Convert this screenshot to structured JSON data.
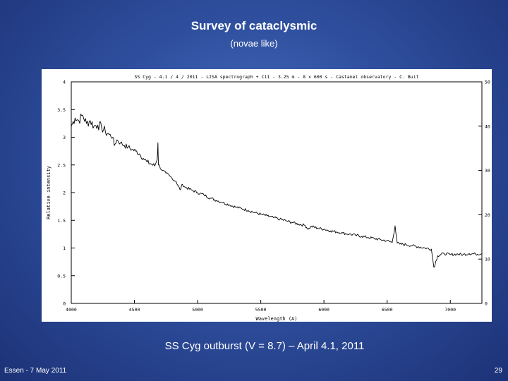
{
  "slide": {
    "title": "Survey of cataclysmic",
    "subtitle": "(novae like)",
    "caption": "SS Cyg outburst (V = 8.7) – April 4.1, 2011",
    "footer_left": "Essen - 7 May 2011",
    "page_number": "29",
    "background_color": "#2f4f9e"
  },
  "chart_data": {
    "type": "line",
    "title": "SS Cyg - 4.1 / 4 / 2011 - LISA spectrograph + C11 - 3.25 m - 8 x 600 s - Castanet observatory - C. Buil",
    "xlabel": "Wavelength (A)",
    "ylabel": "Relative intensity",
    "xlim": [
      4000,
      7250
    ],
    "ylim": [
      0,
      4
    ],
    "y2lim": [
      0,
      50
    ],
    "xticks": [
      4000,
      4500,
      5000,
      5500,
      6000,
      6500,
      7000
    ],
    "xtick_labels": [
      "4000",
      "4500",
      "5000",
      "5500",
      "6000",
      "6500",
      "7000"
    ],
    "yticks": [
      0,
      0.5,
      1,
      1.5,
      2,
      2.5,
      3,
      3.5,
      4
    ],
    "ytick_labels": [
      "0",
      "0.5",
      "1",
      "1.5",
      "2",
      "2.5",
      "3",
      "3.5",
      "4"
    ],
    "y2ticks": [
      0,
      10,
      20,
      30,
      40,
      50
    ],
    "y2tick_labels": [
      "0",
      "10",
      "20",
      "30",
      "40",
      "50"
    ],
    "grid": false,
    "line_color": "#000000",
    "series": [
      {
        "x": [
          4000,
          4030,
          4060,
          4090,
          4120,
          4150,
          4180,
          4210,
          4240,
          4270,
          4300,
          4330,
          4340,
          4360,
          4390,
          4420,
          4450,
          4480,
          4510,
          4540,
          4570,
          4600,
          4630,
          4660,
          4680,
          4686,
          4690,
          4720,
          4750,
          4780,
          4800,
          4830,
          4861,
          4880,
          4900,
          4950,
          5000,
          5050,
          5100,
          5150,
          5200,
          5250,
          5300,
          5350,
          5400,
          5450,
          5500,
          5550,
          5600,
          5650,
          5700,
          5750,
          5800,
          5850,
          5876,
          5900,
          5950,
          6000,
          6050,
          6100,
          6150,
          6200,
          6250,
          6300,
          6350,
          6400,
          6450,
          6500,
          6540,
          6563,
          6580,
          6600,
          6650,
          6700,
          6750,
          6800,
          6850,
          6870,
          6900,
          6950,
          7000,
          7050,
          7100,
          7150,
          7200,
          7250
        ],
        "y": [
          3.2,
          3.35,
          3.3,
          3.4,
          3.25,
          3.3,
          3.2,
          3.22,
          3.18,
          3.1,
          3.05,
          3.0,
          2.85,
          2.95,
          2.9,
          2.85,
          2.82,
          2.78,
          2.75,
          2.7,
          2.62,
          2.55,
          2.52,
          2.48,
          2.6,
          2.9,
          2.5,
          2.4,
          2.35,
          2.3,
          2.25,
          2.2,
          2.05,
          2.15,
          2.1,
          2.05,
          2.0,
          1.96,
          1.9,
          1.86,
          1.82,
          1.78,
          1.74,
          1.71,
          1.68,
          1.64,
          1.61,
          1.58,
          1.55,
          1.52,
          1.49,
          1.46,
          1.43,
          1.41,
          1.34,
          1.39,
          1.36,
          1.34,
          1.31,
          1.29,
          1.27,
          1.25,
          1.23,
          1.21,
          1.19,
          1.17,
          1.15,
          1.13,
          1.1,
          1.4,
          1.09,
          1.07,
          1.06,
          1.04,
          1.02,
          1.0,
          0.98,
          0.65,
          0.86,
          0.9,
          0.88,
          0.89,
          0.88,
          0.9,
          0.89,
          0.9
        ]
      }
    ]
  }
}
